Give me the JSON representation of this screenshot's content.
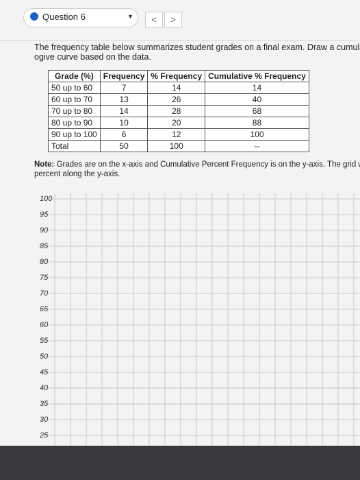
{
  "header": {
    "question": "Question 6"
  },
  "nav": {
    "prev": "<",
    "next": ">"
  },
  "question_lines": [
    "The frequency table below summarizes student grades on a final exam. Draw a cumulative",
    "ogive curve based on the data."
  ],
  "table": {
    "headers": [
      "Grade (%)",
      "Frequency",
      "% Frequency",
      "Cumulative % Frequency"
    ],
    "rows": [
      [
        "50 up to 60",
        7,
        14,
        14
      ],
      [
        "60 up to 70",
        13,
        26,
        40
      ],
      [
        "70 up to 80",
        14,
        28,
        68
      ],
      [
        "80 up to 90",
        10,
        20,
        88
      ],
      [
        "90 up to 100",
        6,
        12,
        100
      ],
      [
        "Total",
        50,
        100,
        "--"
      ]
    ]
  },
  "note": {
    "label": "Note:",
    "lines": [
      "Grades are on the x-axis and Cumulative Percent Frequency is on the y-axis. The grid w",
      "percent along the y-axis."
    ]
  },
  "graph": {
    "y_labels": [
      100,
      95,
      90,
      85,
      80,
      75,
      70,
      65,
      60,
      55,
      50,
      45,
      40,
      35,
      30,
      25
    ]
  }
}
